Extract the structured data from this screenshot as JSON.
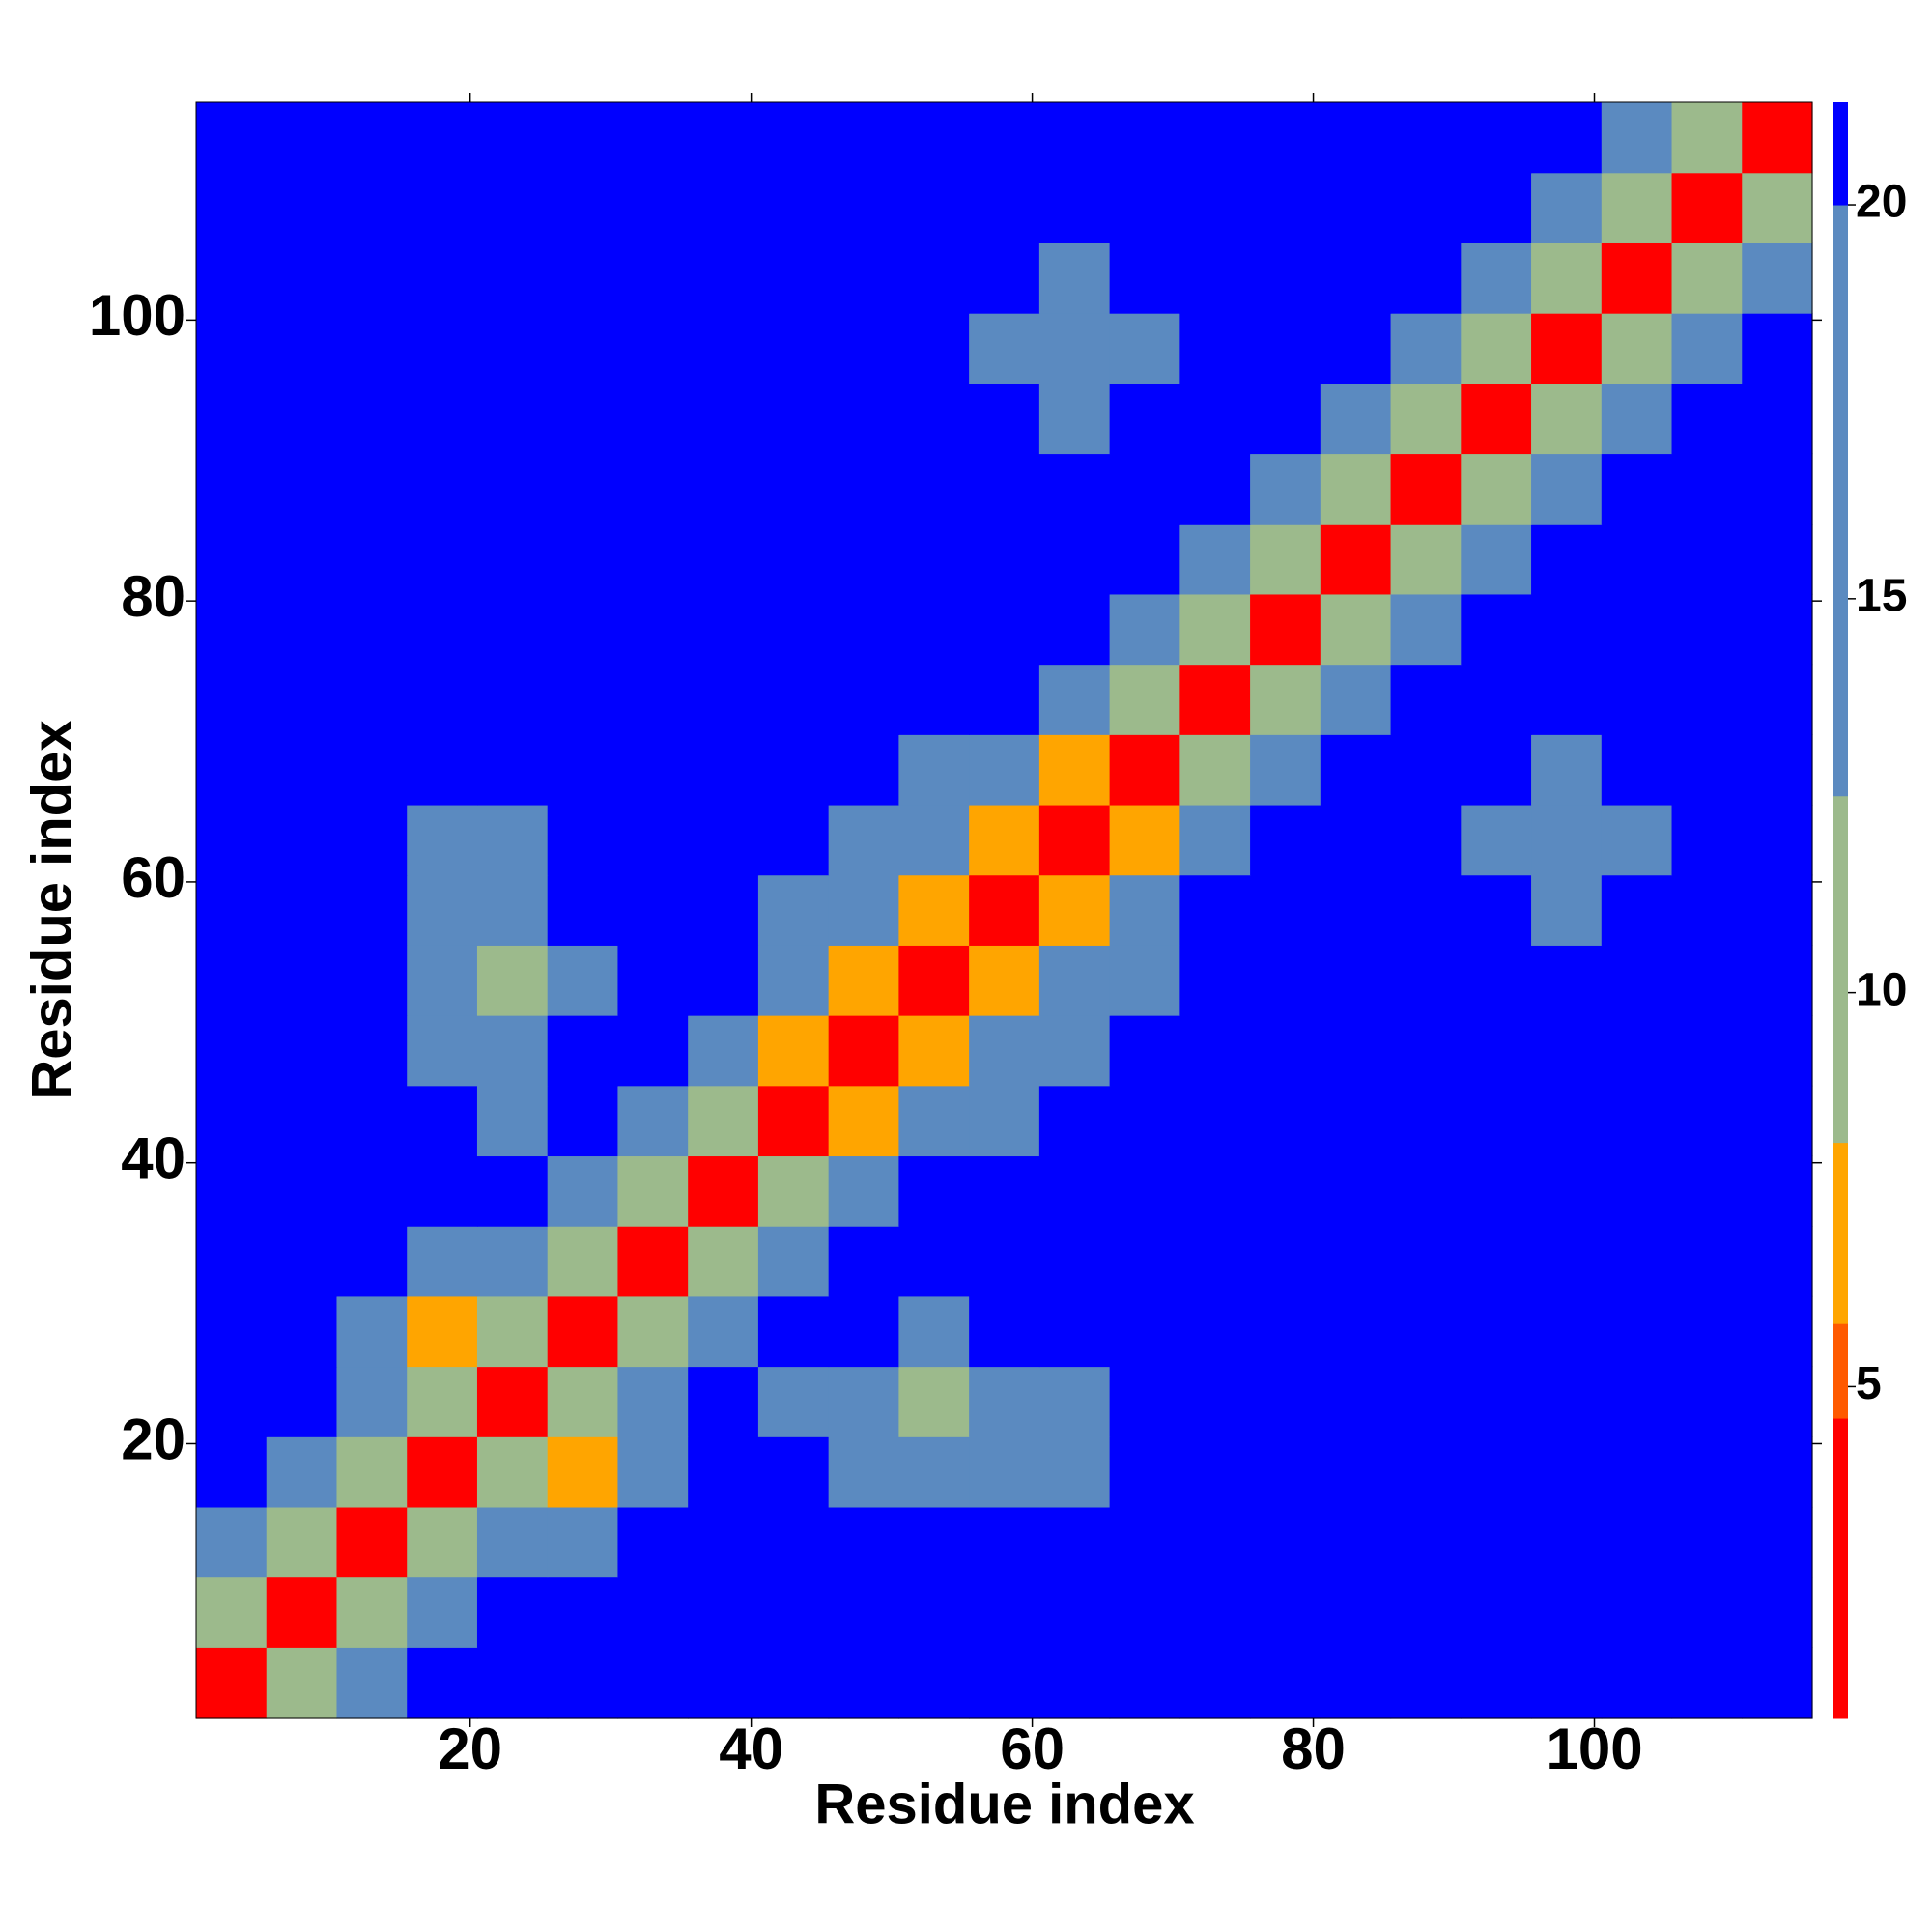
{
  "chart_data": {
    "type": "heatmap",
    "xlabel": "Residue index",
    "ylabel": "Residue index",
    "x": [
      3,
      8,
      13,
      18,
      23,
      28,
      33,
      38,
      43,
      48,
      53,
      58,
      63,
      68,
      73,
      78,
      83,
      88,
      93,
      98,
      103,
      108,
      113
    ],
    "y": [
      3,
      8,
      13,
      18,
      23,
      28,
      33,
      38,
      43,
      48,
      53,
      58,
      63,
      68,
      73,
      78,
      83,
      88,
      93,
      98,
      103,
      108,
      113
    ],
    "z": [
      [
        2,
        12,
        19,
        21,
        21,
        21,
        21,
        21,
        21,
        21,
        21,
        21,
        21,
        21,
        21,
        21,
        21,
        21,
        21,
        21,
        21,
        21,
        21
      ],
      [
        12,
        2,
        12,
        19,
        21,
        21,
        21,
        21,
        21,
        21,
        21,
        21,
        21,
        21,
        21,
        21,
        21,
        21,
        21,
        21,
        21,
        21,
        21
      ],
      [
        19,
        12,
        2,
        12,
        15,
        17,
        21,
        21,
        21,
        21,
        21,
        21,
        21,
        21,
        21,
        21,
        21,
        21,
        21,
        21,
        21,
        21,
        21
      ],
      [
        21,
        19,
        12,
        2,
        12,
        7,
        16,
        21,
        21,
        16,
        16,
        16,
        18,
        21,
        21,
        21,
        21,
        21,
        21,
        21,
        21,
        21,
        21
      ],
      [
        21,
        21,
        15,
        12,
        2,
        12,
        15,
        21,
        19,
        16,
        9,
        16,
        18,
        21,
        21,
        21,
        21,
        21,
        21,
        21,
        21,
        21,
        21
      ],
      [
        21,
        21,
        17,
        7,
        12,
        2,
        12,
        19,
        21,
        21,
        17,
        21,
        21,
        21,
        21,
        21,
        21,
        21,
        21,
        21,
        21,
        21,
        21
      ],
      [
        21,
        21,
        21,
        16,
        15,
        12,
        2,
        12,
        19,
        21,
        21,
        21,
        21,
        21,
        21,
        21,
        21,
        21,
        21,
        21,
        21,
        21,
        21
      ],
      [
        21,
        21,
        21,
        21,
        21,
        19,
        12,
        2,
        12,
        19,
        21,
        21,
        21,
        21,
        21,
        21,
        21,
        21,
        21,
        21,
        21,
        21,
        21
      ],
      [
        21,
        21,
        21,
        21,
        19,
        21,
        19,
        12,
        2,
        7,
        14,
        18,
        21,
        21,
        21,
        21,
        21,
        21,
        21,
        21,
        21,
        21,
        21
      ],
      [
        21,
        21,
        21,
        16,
        16,
        21,
        21,
        19,
        7,
        2,
        7,
        14,
        18,
        21,
        21,
        21,
        21,
        21,
        21,
        21,
        21,
        21,
        21
      ],
      [
        21,
        21,
        21,
        16,
        9,
        17,
        21,
        21,
        14,
        7,
        2,
        7,
        14,
        18,
        21,
        21,
        21,
        21,
        21,
        21,
        21,
        21,
        21
      ],
      [
        21,
        21,
        21,
        16,
        16,
        21,
        21,
        21,
        18,
        14,
        7,
        2,
        7,
        14,
        21,
        21,
        21,
        21,
        21,
        19,
        21,
        21,
        21
      ],
      [
        21,
        21,
        21,
        18,
        18,
        21,
        21,
        21,
        21,
        18,
        14,
        7,
        2,
        7,
        19,
        21,
        21,
        21,
        19,
        19,
        19,
        21,
        21
      ],
      [
        21,
        21,
        21,
        21,
        21,
        21,
        21,
        21,
        21,
        21,
        18,
        14,
        7,
        2,
        12,
        19,
        21,
        21,
        21,
        19,
        21,
        21,
        21
      ],
      [
        21,
        21,
        21,
        21,
        21,
        21,
        21,
        21,
        21,
        21,
        21,
        21,
        19,
        12,
        2,
        12,
        19,
        21,
        21,
        21,
        21,
        21,
        21
      ],
      [
        21,
        21,
        21,
        21,
        21,
        21,
        21,
        21,
        21,
        21,
        21,
        21,
        21,
        19,
        12,
        2,
        12,
        19,
        21,
        21,
        21,
        21,
        21
      ],
      [
        21,
        21,
        21,
        21,
        21,
        21,
        21,
        21,
        21,
        21,
        21,
        21,
        21,
        21,
        19,
        12,
        2,
        12,
        19,
        21,
        21,
        21,
        21
      ],
      [
        21,
        21,
        21,
        21,
        21,
        21,
        21,
        21,
        21,
        21,
        21,
        21,
        21,
        21,
        21,
        19,
        12,
        2,
        12,
        19,
        21,
        21,
        21
      ],
      [
        21,
        21,
        21,
        21,
        21,
        21,
        21,
        21,
        21,
        21,
        21,
        21,
        19,
        21,
        21,
        21,
        19,
        12,
        2,
        12,
        19,
        21,
        21
      ],
      [
        21,
        21,
        21,
        21,
        21,
        21,
        21,
        21,
        21,
        21,
        21,
        19,
        19,
        19,
        21,
        21,
        21,
        19,
        12,
        2,
        12,
        19,
        21
      ],
      [
        21,
        21,
        21,
        21,
        21,
        21,
        21,
        21,
        21,
        21,
        21,
        21,
        19,
        21,
        21,
        21,
        21,
        21,
        19,
        12,
        2,
        12,
        16
      ],
      [
        21,
        21,
        21,
        21,
        21,
        21,
        21,
        21,
        21,
        21,
        21,
        21,
        21,
        21,
        21,
        21,
        21,
        21,
        21,
        19,
        12,
        2,
        12
      ],
      [
        21,
        21,
        21,
        21,
        21,
        21,
        21,
        21,
        21,
        21,
        21,
        21,
        21,
        21,
        21,
        21,
        21,
        21,
        21,
        21,
        16,
        12,
        2
      ]
    ],
    "xlim": [
      0.5,
      115.5
    ],
    "ylim": [
      0.5,
      115.5
    ],
    "xticks": [
      20,
      40,
      60,
      80,
      100
    ],
    "yticks": [
      20,
      40,
      60,
      80,
      100
    ],
    "zlim": [
      0.8,
      21.3
    ],
    "zticks": [
      5,
      10,
      15,
      20
    ],
    "colorscale": [
      [
        4.6,
        "#ff0000"
      ],
      [
        5.8,
        "#ff5a00"
      ],
      [
        8.1,
        "#ffa500"
      ],
      [
        12.5,
        "#9cba8c"
      ],
      [
        20,
        "#5b8ac0"
      ],
      [
        21.3,
        "#0000ff"
      ]
    ],
    "grid": false
  }
}
